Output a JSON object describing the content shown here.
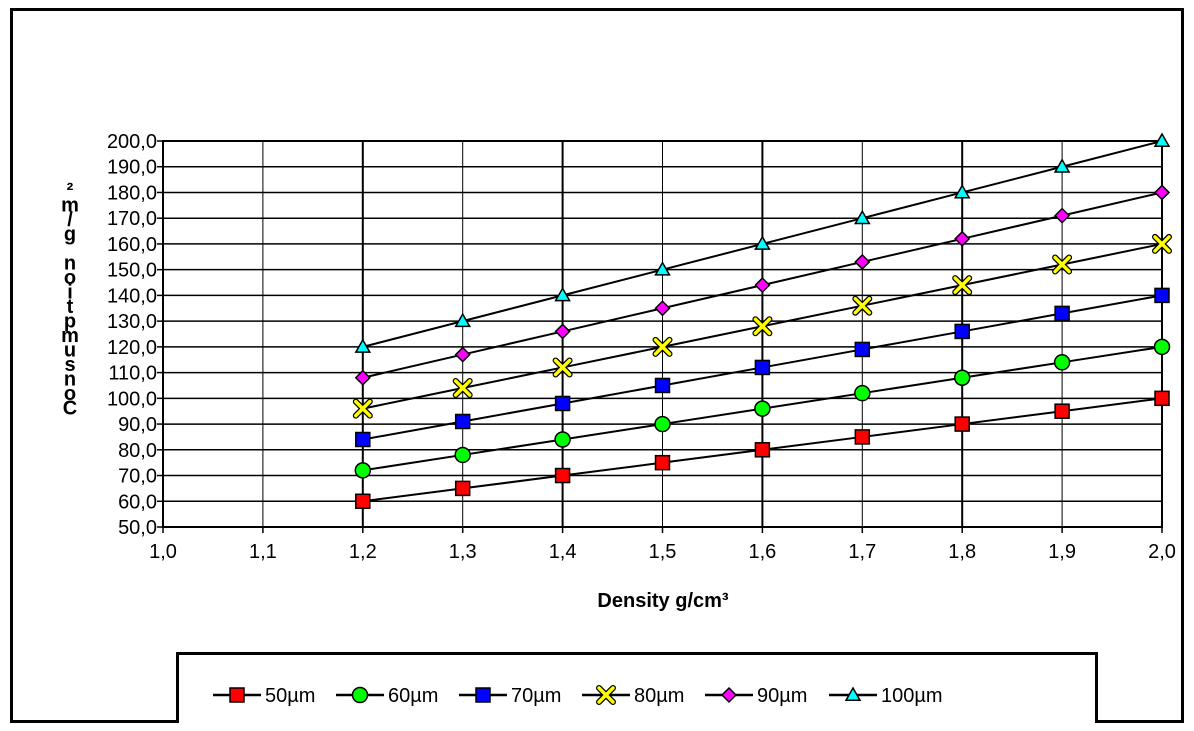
{
  "chart_data": {
    "type": "line",
    "title": "",
    "xlabel": "Density g/cm³",
    "ylabel": "Consumption g/m²",
    "xlim": [
      1.0,
      2.0
    ],
    "ylim": [
      50.0,
      200.0
    ],
    "x_ticks": [
      "1,0",
      "1,1",
      "1,2",
      "1,3",
      "1,4",
      "1,5",
      "1,6",
      "1,7",
      "1,8",
      "1,9",
      "2,0"
    ],
    "y_ticks": [
      "50,0",
      "60,0",
      "70,0",
      "80,0",
      "90,0",
      "100,0",
      "110,0",
      "120,0",
      "130,0",
      "140,0",
      "150,0",
      "160,0",
      "170,0",
      "180,0",
      "190,0",
      "200,0"
    ],
    "grid": true,
    "legend_position": "bottom",
    "x": [
      1.2,
      1.3,
      1.4,
      1.5,
      1.6,
      1.7,
      1.8,
      1.9,
      2.0
    ],
    "series": [
      {
        "name": "50µm",
        "marker": "square",
        "color": "#ff0000",
        "values": [
          60,
          65,
          70,
          75,
          80,
          85,
          90,
          95,
          100
        ]
      },
      {
        "name": "60µm",
        "marker": "circle",
        "color": "#00ff00",
        "values": [
          72,
          78,
          84,
          90,
          96,
          102,
          108,
          114,
          120
        ]
      },
      {
        "name": "70µm",
        "marker": "square",
        "color": "#0000ff",
        "values": [
          84,
          91,
          98,
          105,
          112,
          119,
          126,
          133,
          140
        ]
      },
      {
        "name": "80µm",
        "marker": "x",
        "color": "#ffff00",
        "values": [
          96,
          104,
          112,
          120,
          128,
          136,
          144,
          152,
          160
        ]
      },
      {
        "name": "90µm",
        "marker": "diamond",
        "color": "#ff00ff",
        "values": [
          108,
          117,
          126,
          135,
          144,
          153,
          162,
          171,
          180
        ]
      },
      {
        "name": "100µm",
        "marker": "triangle",
        "color": "#00ffff",
        "values": [
          120,
          130,
          140,
          150,
          160,
          170,
          180,
          190,
          200
        ]
      }
    ]
  }
}
